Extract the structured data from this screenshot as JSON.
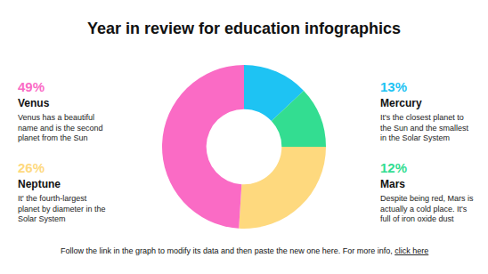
{
  "chart_data": {
    "type": "pie",
    "title": "Year in review for education infographics",
    "categories": [
      "Mercury",
      "Mars",
      "Neptune",
      "Venus"
    ],
    "values": [
      13,
      12,
      26,
      49
    ],
    "value_labels": [
      "13%",
      "12%",
      "26%",
      "49%"
    ],
    "colors": [
      "#1ec3f3",
      "#33dd91",
      "#fed97e",
      "#fa6bc5"
    ],
    "descriptions": [
      [
        "It's the closest planet to",
        "the Sun and the smallest",
        "in the Solar System"
      ],
      [
        "Despite being red, Mars is",
        "actually a cold place. It's",
        "full of iron oxide dust"
      ],
      [
        "It' the fourth-largest",
        "planet by diameter in the",
        "Solar System"
      ],
      [
        "Venus has a beautiful",
        "name and is the second",
        "planet from the Sun"
      ]
    ]
  },
  "footer": {
    "text": "Follow the link in the graph to modify its data and then paste the new one here. For more info,",
    "link": "click here"
  }
}
